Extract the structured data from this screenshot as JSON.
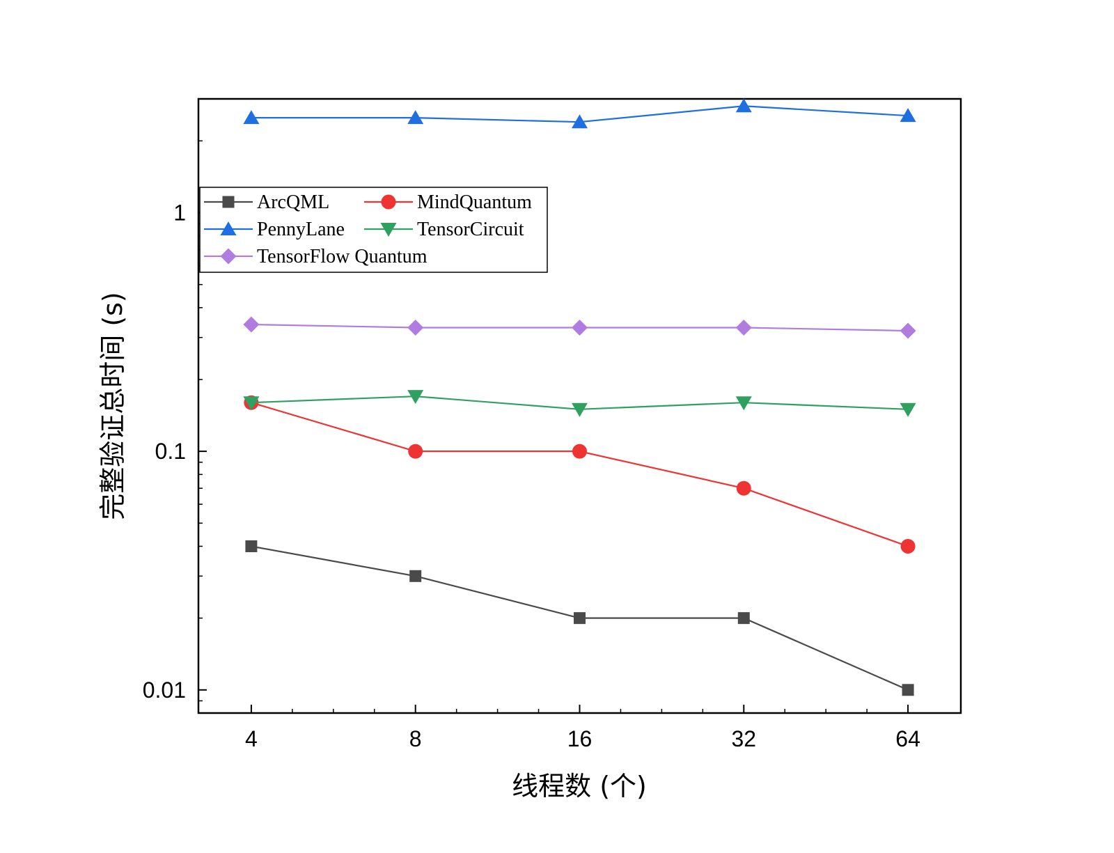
{
  "chart_data": {
    "type": "line",
    "title": "",
    "xlabel": "线程数 (个)",
    "ylabel": "完整验证总时间 (s)",
    "x_scale": "log2",
    "y_scale": "log10",
    "x": [
      4,
      8,
      16,
      32,
      64
    ],
    "x_tick_labels": [
      "4",
      "8",
      "16",
      "32",
      "64"
    ],
    "xlim": [
      3.2,
      80
    ],
    "ylim": [
      0.008,
      3.0
    ],
    "y_ticks": [
      0.01,
      0.1,
      1
    ],
    "y_tick_labels": [
      "0.01",
      "0.1",
      "1"
    ],
    "grid": false,
    "legend_position": "top-left",
    "series": [
      {
        "name": "ArcQML",
        "marker": "square",
        "color": "#4a4a4a",
        "values": [
          0.04,
          0.03,
          0.02,
          0.02,
          0.01
        ]
      },
      {
        "name": "MindQuantum",
        "marker": "circle",
        "color": "#ee3333",
        "values": [
          0.16,
          0.1,
          0.1,
          0.07,
          0.04
        ]
      },
      {
        "name": "PennyLane",
        "marker": "triangle-up",
        "color": "#1f6fe0",
        "values": [
          2.5,
          2.5,
          2.4,
          2.8,
          2.55
        ]
      },
      {
        "name": "TensorCircuit",
        "marker": "triangle-down",
        "color": "#2fa060",
        "values": [
          0.16,
          0.17,
          0.15,
          0.16,
          0.15
        ]
      },
      {
        "name": "TensorFlow Quantum",
        "marker": "diamond",
        "color": "#b07ce0",
        "values": [
          0.34,
          0.33,
          0.33,
          0.33,
          0.32
        ]
      }
    ]
  }
}
